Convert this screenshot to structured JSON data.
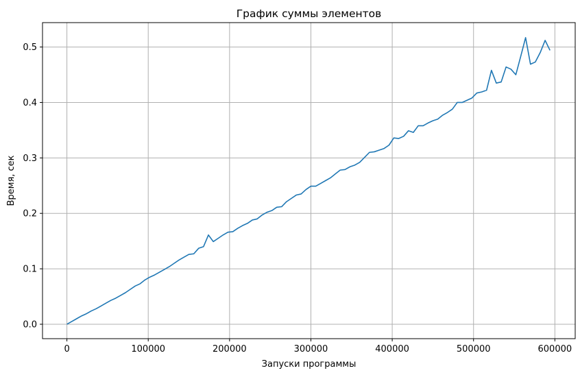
{
  "chart_data": {
    "type": "line",
    "title": "График суммы элементов",
    "xlabel": "Запуски программы",
    "ylabel": "Время, сек",
    "xlim": [
      -30000,
      625000
    ],
    "ylim": [
      -0.026,
      0.544
    ],
    "xticks": [
      0,
      100000,
      200000,
      300000,
      400000,
      500000,
      600000
    ],
    "xtick_labels": [
      "0",
      "100000",
      "200000",
      "300000",
      "400000",
      "500000",
      "600000"
    ],
    "yticks": [
      0.0,
      0.1,
      0.2,
      0.3,
      0.4,
      0.5
    ],
    "ytick_labels": [
      "0.0",
      "0.1",
      "0.2",
      "0.3",
      "0.4",
      "0.5"
    ],
    "grid": true,
    "legend": "none",
    "series": [
      {
        "color": "#1f77b4",
        "x": [
          0,
          6000,
          12000,
          18000,
          24000,
          30000,
          36000,
          42000,
          48000,
          54000,
          60000,
          66000,
          72000,
          78000,
          84000,
          90000,
          96000,
          102000,
          108000,
          114000,
          120000,
          126000,
          132000,
          138000,
          144000,
          150000,
          156000,
          162000,
          168000,
          174000,
          180000,
          186000,
          192000,
          198000,
          204000,
          210000,
          216000,
          222000,
          228000,
          234000,
          240000,
          246000,
          252000,
          258000,
          264000,
          270000,
          276000,
          282000,
          288000,
          294000,
          300000,
          306000,
          312000,
          318000,
          324000,
          330000,
          336000,
          342000,
          348000,
          354000,
          360000,
          366000,
          372000,
          378000,
          384000,
          390000,
          396000,
          402000,
          408000,
          414000,
          420000,
          426000,
          432000,
          438000,
          444000,
          450000,
          456000,
          462000,
          468000,
          474000,
          480000,
          486000,
          492000,
          498000,
          504000,
          510000,
          516000,
          522000,
          528000,
          534000,
          540000,
          546000,
          552000,
          558000,
          564000,
          570000,
          576000,
          582000,
          588000,
          594000
        ],
        "y": [
          0.0,
          0.005,
          0.01,
          0.015,
          0.019,
          0.024,
          0.028,
          0.033,
          0.038,
          0.043,
          0.047,
          0.052,
          0.057,
          0.063,
          0.069,
          0.073,
          0.08,
          0.085,
          0.089,
          0.094,
          0.099,
          0.104,
          0.11,
          0.116,
          0.121,
          0.126,
          0.127,
          0.137,
          0.14,
          0.161,
          0.149,
          0.155,
          0.161,
          0.166,
          0.167,
          0.173,
          0.178,
          0.182,
          0.188,
          0.19,
          0.197,
          0.202,
          0.205,
          0.211,
          0.212,
          0.221,
          0.227,
          0.233,
          0.235,
          0.243,
          0.249,
          0.249,
          0.254,
          0.259,
          0.264,
          0.271,
          0.278,
          0.279,
          0.284,
          0.287,
          0.292,
          0.301,
          0.31,
          0.311,
          0.314,
          0.317,
          0.323,
          0.336,
          0.335,
          0.339,
          0.349,
          0.346,
          0.358,
          0.358,
          0.363,
          0.367,
          0.37,
          0.377,
          0.382,
          0.388,
          0.4,
          0.4,
          0.404,
          0.408,
          0.417,
          0.419,
          0.422,
          0.458,
          0.435,
          0.437,
          0.464,
          0.46,
          0.45,
          0.483,
          0.517,
          0.469,
          0.473,
          0.49,
          0.512,
          0.494
        ]
      }
    ]
  }
}
